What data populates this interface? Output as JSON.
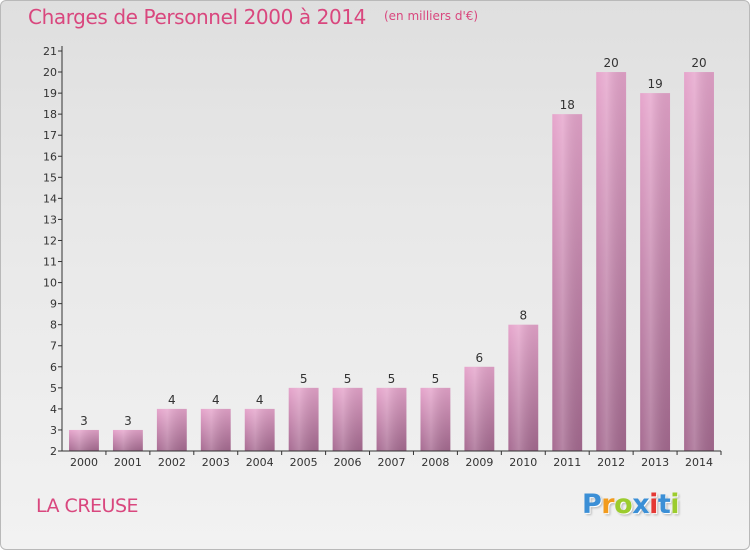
{
  "header": {
    "title": "Charges de Personnel 2000 à 2014",
    "unit": "(en milliers d'€)"
  },
  "footer": {
    "region": "LA CREUSE",
    "logo": "Proxiti",
    "logo_colors": [
      "#3b8fd6",
      "#f29b1d",
      "#9ccc2e",
      "#3b8fd6",
      "#e53935",
      "#3b8fd6",
      "#9ccc2e"
    ]
  },
  "colors": {
    "accent": "#d9477e",
    "bar_top": "#e6a5cc",
    "bar_bottom": "#a66b91",
    "axis": "#333333"
  },
  "chart_data": {
    "type": "bar",
    "categories": [
      "2000",
      "2001",
      "2002",
      "2003",
      "2004",
      "2005",
      "2006",
      "2007",
      "2008",
      "2009",
      "2010",
      "2011",
      "2012",
      "2013",
      "2014"
    ],
    "values": [
      3,
      3,
      4,
      4,
      4,
      5,
      5,
      5,
      5,
      6,
      8,
      18,
      20,
      19,
      20
    ],
    "ylim": [
      2,
      21
    ],
    "yticks": [
      2,
      3,
      4,
      5,
      6,
      7,
      8,
      9,
      10,
      11,
      12,
      13,
      14,
      15,
      16,
      17,
      18,
      19,
      20,
      21
    ],
    "grid": false,
    "data_labels": true
  }
}
